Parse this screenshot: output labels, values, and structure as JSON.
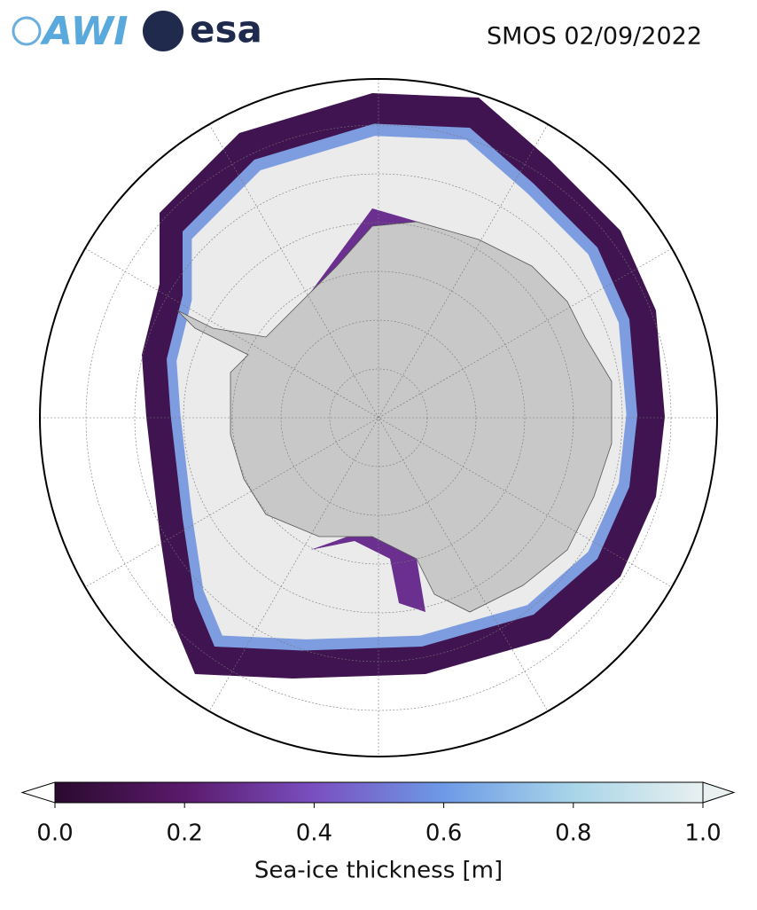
{
  "logos": {
    "awi": "AWI",
    "esa": "esa"
  },
  "title": "SMOS 02/09/2022",
  "colorbar": {
    "label": "Sea-ice thickness [m]",
    "lim": [
      0,
      1
    ],
    "ticks": [
      {
        "value": 0,
        "label": "0.0"
      },
      0.2,
      0.4,
      0.6,
      0.8,
      {
        "value": 1,
        "label": "1.0"
      }
    ],
    "colormap": [
      "#2a0a2e",
      "#5a1a6b",
      "#7a4fc0",
      "#6d9ae6",
      "#a8d5e8",
      "#e8f0f0"
    ]
  }
}
